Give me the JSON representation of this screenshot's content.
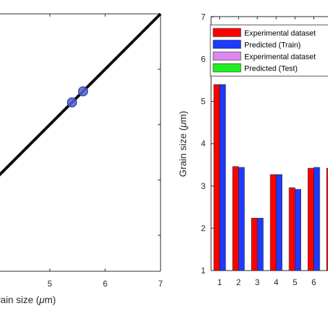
{
  "chart_data": [
    {
      "type": "scatter",
      "xlabel": "Grain size (μm)",
      "visible_xlabel_parts": {
        "prefix": "rain size (",
        "mu": "μ",
        "unit": "m)"
      },
      "xlim": [
        4,
        7
      ],
      "ylim": [
        3.5,
        7
      ],
      "xticks": [
        "5",
        "6",
        "7"
      ],
      "line": {
        "x": [
          4,
          7
        ],
        "y": [
          4,
          7
        ],
        "color": "#000000"
      },
      "points": [
        {
          "x": 5.4,
          "y": 5.4
        },
        {
          "x": 5.6,
          "y": 5.6
        }
      ],
      "colors": {
        "marker": "#5566cc",
        "marker_edge": "#3344bb"
      }
    },
    {
      "type": "bar",
      "ylabel": "Grain size (μm)",
      "visible_ylabel_parts": {
        "prefix": "Grain size (",
        "mu": "μ",
        "unit": "m)"
      },
      "ylim": [
        1,
        7
      ],
      "yticks": [
        "1",
        "2",
        "3",
        "4",
        "5",
        "6",
        "7"
      ],
      "categories": [
        "1",
        "2",
        "3",
        "4",
        "5",
        "6"
      ],
      "series": [
        {
          "name": "Experimental dataset",
          "values": [
            5.4,
            3.46,
            2.24,
            3.27,
            2.96,
            3.42
          ],
          "color": "#ff0000"
        },
        {
          "name": "Predicted (Train)",
          "values": [
            5.4,
            3.44,
            2.24,
            3.27,
            2.92,
            3.44
          ],
          "color": "#1f3aff"
        }
      ],
      "legend": {
        "position": "top-right",
        "entries": [
          {
            "label": "Experimental dataset",
            "color": "#ff0000"
          },
          {
            "label": "Predicted (Train)",
            "color": "#1f3aff"
          },
          {
            "label": "Experimental dataset",
            "color": "#dd88ee"
          },
          {
            "label": "Predicted (Test)",
            "color": "#22ee22"
          }
        ]
      },
      "partial_bar_color": "#ff0000"
    }
  ]
}
